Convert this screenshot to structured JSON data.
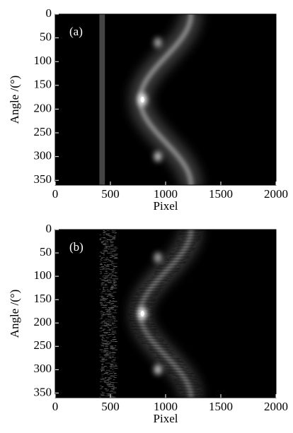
{
  "chart_data": [
    {
      "type": "heatmap",
      "label": "(a)",
      "xlabel": "Pixel",
      "ylabel": "Angle /(°)",
      "xlim": [
        0,
        2000
      ],
      "ylim": [
        0,
        360
      ],
      "y_inverted": true,
      "xticks": [
        0,
        500,
        1000,
        1500,
        2000
      ],
      "yticks": [
        0,
        50,
        100,
        150,
        200,
        250,
        300,
        350
      ]
    },
    {
      "type": "heatmap",
      "label": "(b)",
      "xlabel": "Pixel",
      "ylabel": "Angle /(°)",
      "xlim": [
        0,
        2000
      ],
      "ylim": [
        0,
        360
      ],
      "y_inverted": true,
      "xticks": [
        0,
        500,
        1000,
        1500,
        2000
      ],
      "yticks": [
        0,
        50,
        100,
        150,
        200,
        250,
        300,
        350
      ]
    }
  ]
}
